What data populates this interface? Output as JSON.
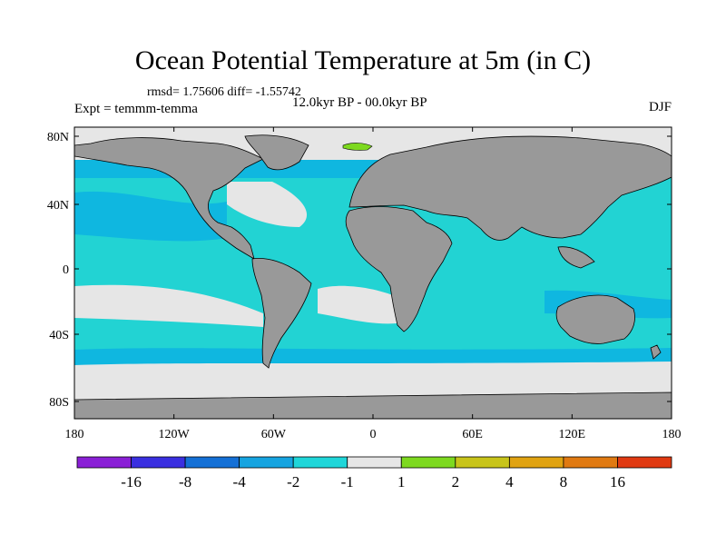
{
  "title": "Ocean Potential Temperature at 5m (in C)",
  "stats": "rmsd= 1.75606 diff= -1.55742",
  "experiment": "Expt = temmm-temma",
  "period": "12.0kyr BP - 00.0kyr BP",
  "season": "DJF",
  "axes": {
    "y_labels": [
      "80N",
      "40N",
      "0",
      "40S",
      "80S"
    ],
    "x_labels": [
      "180",
      "120W",
      "60W",
      "0",
      "60E",
      "120E",
      "180"
    ]
  },
  "colors": {
    "land": "#999999",
    "ocean_default": "#22d3d3",
    "band_light": "#e6e6e6",
    "band_mid": "#0fb7e0"
  },
  "colorbar": {
    "colors": [
      "#8a1fd6",
      "#3a2fe0",
      "#1470d6",
      "#16a4e0",
      "#1fd6d9",
      "#e6e6e6",
      "#7dd91f",
      "#c8c41a",
      "#e0a312",
      "#e07a12",
      "#e03a12"
    ],
    "labels": [
      "-16",
      "-8",
      "-4",
      "-2",
      "-1",
      "1",
      "2",
      "4",
      "8",
      "16"
    ]
  }
}
